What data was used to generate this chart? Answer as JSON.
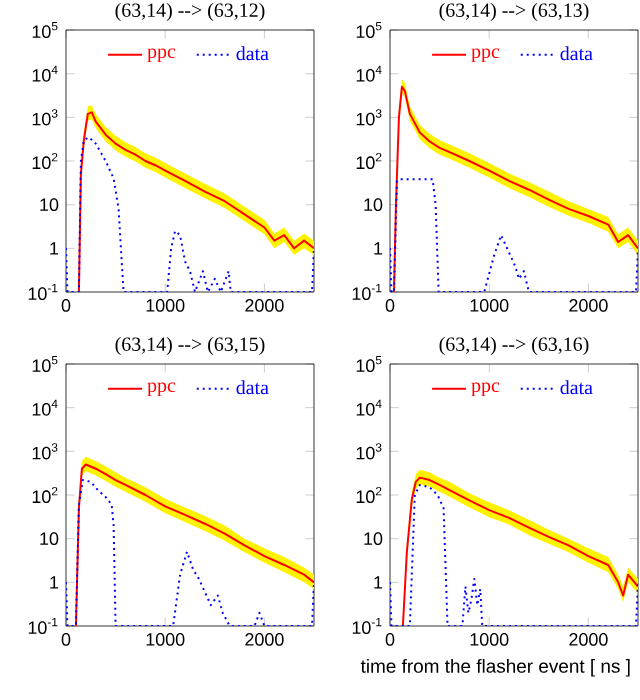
{
  "chart_data": [
    {
      "type": "line",
      "title": "(63,14) --> (63,12)",
      "log": "y",
      "xlim": [
        0,
        2500
      ],
      "ylim": [
        0.1,
        100000
      ],
      "xticks": [
        0,
        1000,
        2000
      ],
      "yticks": [
        {
          "value": 0.1,
          "label": "10$^{-1}$"
        },
        1,
        10,
        {
          "value": 100,
          "label": "10$^{2}$"
        },
        {
          "value": 1000,
          "label": "10$^{3}$"
        },
        {
          "value": 10000,
          "label": "10$^{4}$"
        },
        {
          "value": 100000,
          "label": "10$^{5}$"
        }
      ],
      "legend": "top",
      "series": [
        {
          "name": "ppc",
          "color": "#ff0000",
          "line_style": "solid",
          "x": [
            130,
            150,
            180,
            220,
            260,
            300,
            400,
            500,
            600,
            700,
            800,
            900,
            1000,
            1200,
            1400,
            1600,
            1800,
            2000,
            2100,
            2200,
            2300,
            2400,
            2500
          ],
          "values": [
            0.1,
            50,
            300,
            1200,
            1300,
            800,
            400,
            250,
            180,
            140,
            100,
            80,
            60,
            35,
            20,
            12,
            6,
            3,
            1.5,
            2,
            1,
            1.5,
            1
          ],
          "upper": [
            0.1,
            75,
            450,
            1800,
            1900,
            1200,
            600,
            380,
            270,
            210,
            150,
            120,
            90,
            52,
            30,
            18,
            9,
            4.5,
            2.2,
            3,
            1.5,
            2.2,
            1.5
          ],
          "lower": [
            0.1,
            35,
            210,
            840,
            910,
            560,
            280,
            175,
            126,
            98,
            70,
            56,
            42,
            24,
            14,
            8.4,
            4.2,
            2.1,
            1,
            1.4,
            0.7,
            1,
            0.7
          ]
        },
        {
          "name": "data",
          "color": "#0000ff",
          "line_style": "dotted",
          "x": [
            0,
            15,
            130,
            150,
            180,
            230,
            300,
            400,
            480,
            530,
            580,
            1020,
            1060,
            1100,
            1150,
            1200,
            1250,
            1300,
            1380,
            1430,
            1500,
            1560,
            1640,
            1660,
            2480,
            2500
          ],
          "values": [
            1,
            0.1,
            0.1,
            100,
            300,
            350,
            250,
            100,
            40,
            8,
            0.1,
            0.1,
            1,
            2.5,
            2,
            0.5,
            0.3,
            0.1,
            0.3,
            0.1,
            0.2,
            0.1,
            0.3,
            0.1,
            0.1,
            1
          ]
        }
      ]
    },
    {
      "type": "line",
      "title": "(63,14) --> (63,13)",
      "log": "y",
      "xlim": [
        0,
        2500
      ],
      "ylim": [
        0.1,
        100000
      ],
      "xticks": [
        0,
        1000,
        2000
      ],
      "yticks": [
        {
          "value": 0.1,
          "label": "10$^{-1}$"
        },
        1,
        10,
        {
          "value": 100,
          "label": "10$^{2}$"
        },
        {
          "value": 1000,
          "label": "10$^{3}$"
        },
        {
          "value": 10000,
          "label": "10$^{4}$"
        },
        {
          "value": 100000,
          "label": "10$^{5}$"
        }
      ],
      "legend": "top",
      "series": [
        {
          "name": "ppc",
          "color": "#ff0000",
          "line_style": "solid",
          "x": [
            40,
            60,
            90,
            120,
            150,
            200,
            300,
            400,
            500,
            600,
            800,
            1000,
            1200,
            1400,
            1600,
            1800,
            2000,
            2200,
            2300,
            2400,
            2500
          ],
          "values": [
            0.1,
            10,
            1000,
            5000,
            4000,
            1200,
            450,
            280,
            200,
            160,
            100,
            60,
            35,
            22,
            13,
            8,
            5.5,
            3.5,
            1.4,
            2,
            1
          ],
          "upper": [
            0.1,
            15,
            1500,
            7500,
            6000,
            1800,
            680,
            420,
            300,
            240,
            150,
            90,
            52,
            33,
            20,
            12,
            8,
            5.2,
            2.1,
            3,
            1.5
          ],
          "lower": [
            0.1,
            7,
            700,
            3500,
            2800,
            840,
            315,
            196,
            140,
            112,
            70,
            42,
            24,
            15,
            9,
            5.6,
            3.8,
            2.4,
            1,
            1.4,
            0.7
          ]
        },
        {
          "name": "data",
          "color": "#0000ff",
          "line_style": "dotted",
          "x": [
            0,
            15,
            40,
            70,
            100,
            430,
            460,
            490,
            950,
            1050,
            1120,
            1200,
            1260,
            1300,
            1350,
            1400,
            2480,
            2500
          ],
          "values": [
            1,
            0.1,
            0.1,
            35,
            38,
            38,
            10,
            0.1,
            0.1,
            0.7,
            2,
            0.8,
            0.4,
            0.2,
            0.3,
            0.1,
            0.1,
            1
          ]
        }
      ]
    },
    {
      "type": "line",
      "title": "(63,14) --> (63,15)",
      "log": "y",
      "xlim": [
        0,
        2500
      ],
      "ylim": [
        0.1,
        100000
      ],
      "xticks": [
        0,
        1000,
        2000
      ],
      "yticks": [
        {
          "value": 0.1,
          "label": "10$^{-1}$"
        },
        1,
        10,
        {
          "value": 100,
          "label": "10$^{2}$"
        },
        {
          "value": 1000,
          "label": "10$^{3}$"
        },
        {
          "value": 10000,
          "label": "10$^{4}$"
        },
        {
          "value": 100000,
          "label": "10$^{5}$"
        }
      ],
      "legend": "top",
      "series": [
        {
          "name": "ppc",
          "color": "#ff0000",
          "line_style": "solid",
          "x": [
            100,
            130,
            160,
            200,
            300,
            400,
            500,
            600,
            800,
            1000,
            1200,
            1400,
            1600,
            1800,
            2000,
            2200,
            2400,
            2500
          ],
          "values": [
            0.1,
            50,
            400,
            500,
            400,
            300,
            220,
            170,
            100,
            55,
            35,
            22,
            13,
            7,
            4,
            2.5,
            1.5,
            1
          ],
          "upper": [
            0.1,
            75,
            600,
            750,
            600,
            450,
            330,
            250,
            150,
            82,
            52,
            33,
            20,
            10,
            6,
            3.8,
            2.2,
            1.5
          ],
          "lower": [
            0.1,
            35,
            280,
            350,
            280,
            210,
            154,
            119,
            70,
            38,
            24,
            15,
            9,
            4.9,
            2.8,
            1.7,
            1,
            0.7
          ]
        },
        {
          "name": "data",
          "color": "#0000ff",
          "line_style": "dotted",
          "x": [
            0,
            15,
            100,
            130,
            170,
            250,
            320,
            400,
            460,
            480,
            500,
            1080,
            1150,
            1220,
            1280,
            1340,
            1400,
            1460,
            1530,
            1580,
            1650,
            1900,
            1950,
            2000,
            2480,
            2500
          ],
          "values": [
            1,
            0.1,
            0.1,
            60,
            220,
            200,
            130,
            90,
            60,
            20,
            0.1,
            0.1,
            1.5,
            5,
            2,
            1.2,
            0.6,
            0.3,
            0.5,
            0.2,
            0.1,
            0.1,
            0.2,
            0.1,
            0.1,
            1
          ]
        }
      ]
    },
    {
      "type": "line",
      "title": "(63,14) --> (63,16)",
      "xlabel": "time from the flasher event [ ns ]",
      "log": "y",
      "xlim": [
        0,
        2500
      ],
      "ylim": [
        0.1,
        100000
      ],
      "xticks": [
        0,
        1000,
        2000
      ],
      "yticks": [
        {
          "value": 0.1,
          "label": "10$^{-1}$"
        },
        1,
        10,
        {
          "value": 100,
          "label": "10$^{2}$"
        },
        {
          "value": 1000,
          "label": "10$^{3}$"
        },
        {
          "value": 10000,
          "label": "10$^{4}$"
        },
        {
          "value": 100000,
          "label": "10$^{5}$"
        }
      ],
      "legend": "top",
      "series": [
        {
          "name": "ppc",
          "color": "#ff0000",
          "line_style": "solid",
          "x": [
            130,
            170,
            220,
            260,
            300,
            400,
            500,
            600,
            800,
            1000,
            1200,
            1400,
            1600,
            1800,
            2000,
            2200,
            2300,
            2350,
            2400,
            2500
          ],
          "values": [
            0.1,
            5,
            80,
            200,
            250,
            220,
            170,
            130,
            75,
            45,
            30,
            18,
            11,
            7,
            4,
            2.5,
            1,
            0.5,
            1.5,
            0.8
          ],
          "upper": [
            0.1,
            7.5,
            120,
            300,
            380,
            330,
            250,
            200,
            110,
            68,
            45,
            27,
            16,
            10,
            6,
            3.8,
            1.5,
            0.8,
            2.2,
            1.2
          ],
          "lower": [
            0.1,
            3.5,
            56,
            140,
            175,
            154,
            119,
            91,
            52,
            31,
            21,
            12,
            7.7,
            4.9,
            2.8,
            1.7,
            0.7,
            0.35,
            1,
            0.56
          ]
        },
        {
          "name": "data",
          "color": "#0000ff",
          "line_style": "dotted",
          "x": [
            0,
            15,
            200,
            250,
            300,
            400,
            480,
            540,
            580,
            730,
            760,
            790,
            820,
            850,
            880,
            910,
            930,
            2480,
            2500
          ],
          "values": [
            1,
            0.1,
            0.1,
            100,
            170,
            150,
            100,
            50,
            0.1,
            0.1,
            0.8,
            0.2,
            0.4,
            1.2,
            0.3,
            0.7,
            0.1,
            0.1,
            1
          ]
        }
      ]
    }
  ]
}
